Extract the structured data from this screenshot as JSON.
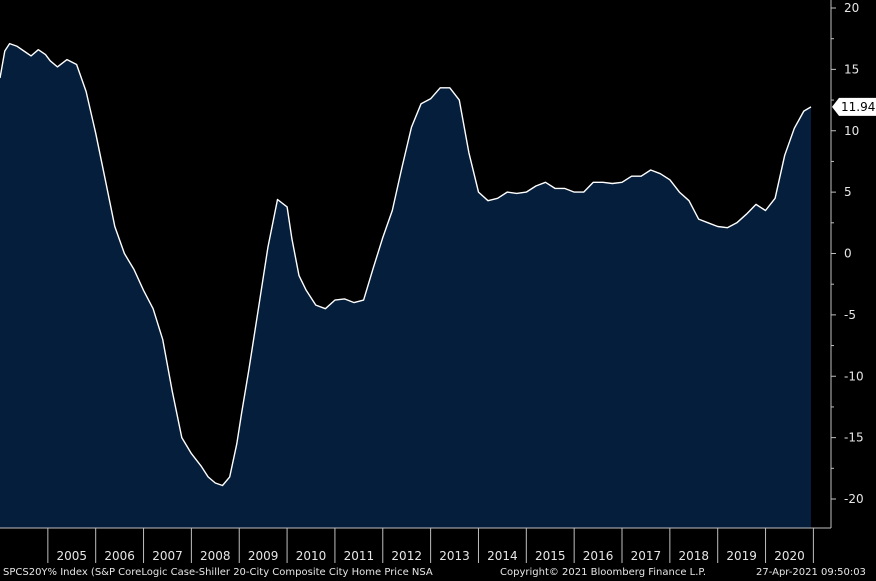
{
  "chart_data": {
    "type": "area",
    "title": "",
    "xlabel": "",
    "ylabel": "",
    "ylim": [
      -22,
      20
    ],
    "yticks": [
      20,
      15,
      10,
      5,
      0,
      -5,
      -10,
      -15,
      -20
    ],
    "year_labels": [
      "2005",
      "2006",
      "2007",
      "2008",
      "2009",
      "2010",
      "2011",
      "2012",
      "2013",
      "2014",
      "2015",
      "2016",
      "2017",
      "2018",
      "2019",
      "2020"
    ],
    "last_value_label": "11.94",
    "colors": {
      "fill": "#051e3b",
      "line": "#ffffff",
      "background": "#000000",
      "axis_text": "#e6e6e6"
    },
    "series": [
      {
        "x": [
          2004.0,
          2004.1,
          2004.2,
          2004.35,
          2004.5,
          2004.65,
          2004.8,
          2004.95,
          2005.05,
          2005.2,
          2005.4,
          2005.6,
          2005.8,
          2006.0,
          2006.2,
          2006.4,
          2006.6,
          2006.8,
          2007.0,
          2007.2,
          2007.4,
          2007.6,
          2007.8,
          2008.0,
          2008.2,
          2008.35,
          2008.5,
          2008.65,
          2008.8,
          2008.95,
          2009.05,
          2009.2,
          2009.4,
          2009.6,
          2009.8,
          2010.0,
          2010.1,
          2010.25,
          2010.4,
          2010.6,
          2010.8,
          2011.0,
          2011.2,
          2011.4,
          2011.6,
          2011.8,
          2012.0,
          2012.2,
          2012.4,
          2012.6,
          2012.8,
          2013.0,
          2013.2,
          2013.4,
          2013.6,
          2013.8,
          2014.0,
          2014.2,
          2014.4,
          2014.6,
          2014.8,
          2015.0,
          2015.2,
          2015.4,
          2015.6,
          2015.8,
          2016.0,
          2016.2,
          2016.4,
          2016.6,
          2016.8,
          2017.0,
          2017.2,
          2017.4,
          2017.6,
          2017.8,
          2018.0,
          2018.2,
          2018.4,
          2018.6,
          2018.8,
          2019.0,
          2019.2,
          2019.4,
          2019.6,
          2019.8,
          2020.0,
          2020.2,
          2020.4,
          2020.6,
          2020.8,
          2020.95
        ],
        "values": [
          14.3,
          16.5,
          17.1,
          16.9,
          16.5,
          16.1,
          16.6,
          16.2,
          15.7,
          15.2,
          15.8,
          15.4,
          13.2,
          9.8,
          6.0,
          2.2,
          0.0,
          -1.3,
          -3.0,
          -4.5,
          -7.0,
          -11.2,
          -15.0,
          -16.3,
          -17.3,
          -18.2,
          -18.7,
          -18.9,
          -18.2,
          -15.5,
          -13.0,
          -9.5,
          -4.5,
          0.5,
          4.4,
          3.8,
          1.2,
          -1.8,
          -3.0,
          -4.2,
          -4.5,
          -3.8,
          -3.7,
          -4.0,
          -3.8,
          -1.2,
          1.3,
          3.5,
          7.0,
          10.3,
          12.2,
          12.6,
          13.5,
          13.5,
          12.5,
          8.2,
          5.0,
          4.3,
          4.5,
          5.0,
          4.9,
          5.0,
          5.5,
          5.8,
          5.3,
          5.3,
          5.0,
          5.0,
          5.8,
          5.8,
          5.7,
          5.8,
          6.3,
          6.3,
          6.8,
          6.5,
          6.0,
          5.0,
          4.3,
          2.8,
          2.5,
          2.2,
          2.1,
          2.5,
          3.2,
          4.0,
          3.5,
          4.5,
          8.0,
          10.2,
          11.6,
          11.94
        ]
      }
    ]
  },
  "footer": {
    "left": "SPCS20Y% Index (S&P CoreLogic Case-Shiller 20-City Composite City Home Price NSA",
    "copyright": "Copyright© 2021 Bloomberg Finance L.P.",
    "timestamp": "27-Apr-2021 09:50:03"
  }
}
